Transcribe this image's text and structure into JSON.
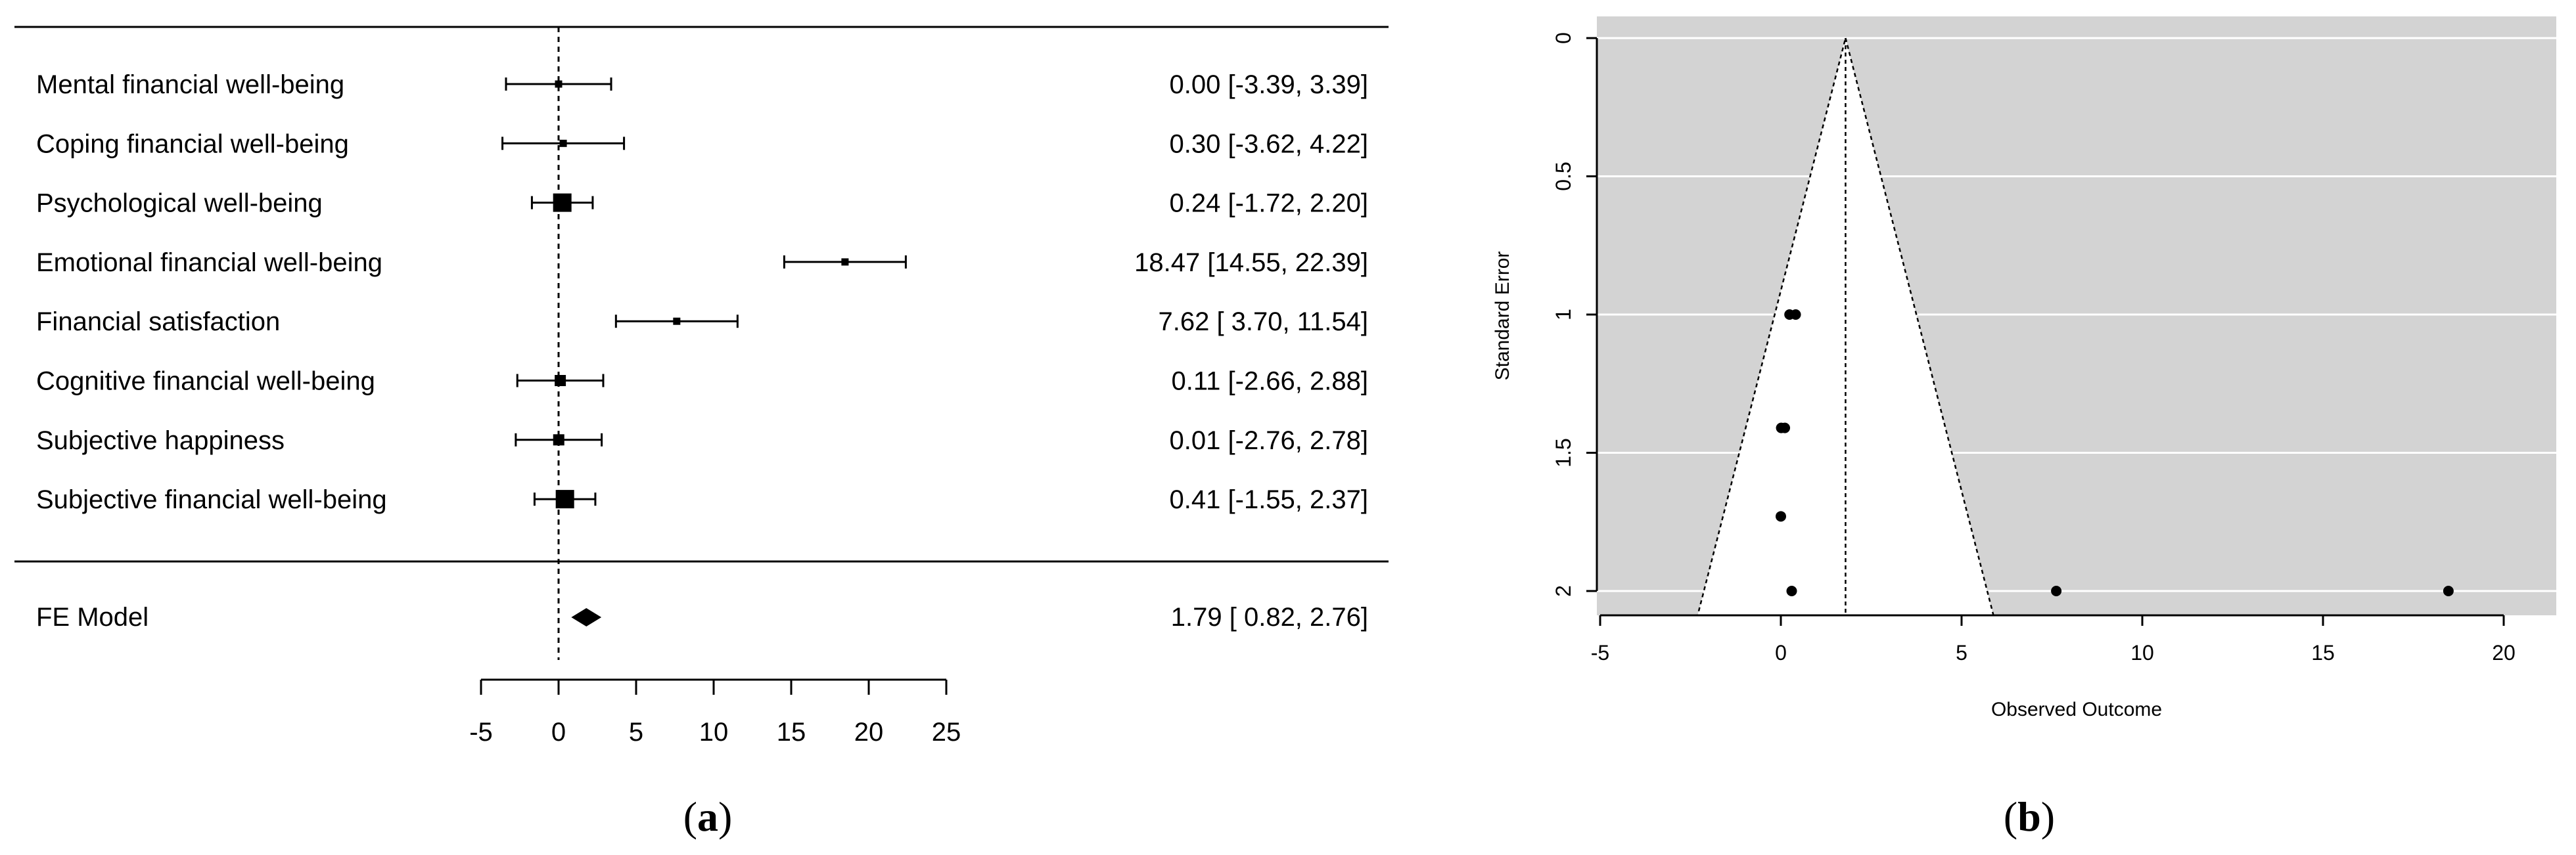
{
  "colors": {
    "ink": "#000000",
    "funnel_background": "#d3d3d3",
    "funnel_grid": "#ffffff",
    "funnel_region": "#ffffff"
  },
  "panel_a": {
    "caption_open": "(",
    "caption_letter": "a",
    "caption_close": ")",
    "model_label": "FE Model",
    "model_text": "1.79 [ 0.82,  2.76]"
  },
  "panel_b": {
    "caption_open": "(",
    "caption_letter": "b",
    "caption_close": ")"
  },
  "chart_data": [
    {
      "type": "forest",
      "title": "",
      "xlabel": "",
      "ylabel": "",
      "xlim": [
        -5,
        25
      ],
      "x_ticks": [
        "-5",
        "0",
        "5",
        "10",
        "15",
        "20",
        "25"
      ],
      "reference_line": 0,
      "studies": [
        {
          "label": "Mental financial well-being",
          "estimate": 0.0,
          "lower": -3.39,
          "upper": 3.39,
          "text": "0.00 [-3.39,  3.39]",
          "weight_rank": 1
        },
        {
          "label": "Coping financial well-being",
          "estimate": 0.3,
          "lower": -3.62,
          "upper": 4.22,
          "text": "0.30 [-3.62,  4.22]",
          "weight_rank": 1
        },
        {
          "label": "Psychological well-being",
          "estimate": 0.24,
          "lower": -1.72,
          "upper": 2.2,
          "text": "0.24 [-1.72,  2.20]",
          "weight_rank": 4
        },
        {
          "label": "Emotional financial well-being",
          "estimate": 18.47,
          "lower": 14.55,
          "upper": 22.39,
          "text": "18.47 [14.55, 22.39]",
          "weight_rank": 1
        },
        {
          "label": "Financial satisfaction",
          "estimate": 7.62,
          "lower": 3.7,
          "upper": 11.54,
          "text": "7.62 [ 3.70, 11.54]",
          "weight_rank": 1
        },
        {
          "label": "Cognitive financial well-being",
          "estimate": 0.11,
          "lower": -2.66,
          "upper": 2.88,
          "text": "0.11 [-2.66,  2.88]",
          "weight_rank": 2
        },
        {
          "label": "Subjective happiness",
          "estimate": 0.01,
          "lower": -2.76,
          "upper": 2.78,
          "text": "0.01 [-2.76,  2.78]",
          "weight_rank": 2
        },
        {
          "label": "Subjective financial well-being",
          "estimate": 0.41,
          "lower": -1.55,
          "upper": 2.37,
          "text": "0.41 [-1.55,  2.37]",
          "weight_rank": 4
        }
      ],
      "summary": {
        "label": "FE Model",
        "estimate": 1.79,
        "lower": 0.82,
        "upper": 2.76,
        "text": "1.79 [ 0.82,  2.76]"
      }
    },
    {
      "type": "scatter",
      "subtype": "funnel",
      "title": "",
      "xlabel": "Observed Outcome",
      "ylabel": "Standard Error",
      "xlim": [
        -5,
        21
      ],
      "ylim": [
        2,
        0
      ],
      "y_reversed": true,
      "x_ticks": [
        "-5",
        "0",
        "5",
        "10",
        "15",
        "20"
      ],
      "y_ticks": [
        "0",
        "0.5",
        "1",
        "1.5",
        "2"
      ],
      "grid": true,
      "center": 1.79,
      "funnel_z": 1.96,
      "points": [
        {
          "x": 0.0,
          "y": 1.73
        },
        {
          "x": 0.3,
          "y": 2.0
        },
        {
          "x": 0.24,
          "y": 1.0
        },
        {
          "x": 18.47,
          "y": 2.0
        },
        {
          "x": 7.62,
          "y": 2.0
        },
        {
          "x": 0.11,
          "y": 1.41
        },
        {
          "x": 0.01,
          "y": 1.41
        },
        {
          "x": 0.41,
          "y": 1.0
        }
      ]
    }
  ]
}
